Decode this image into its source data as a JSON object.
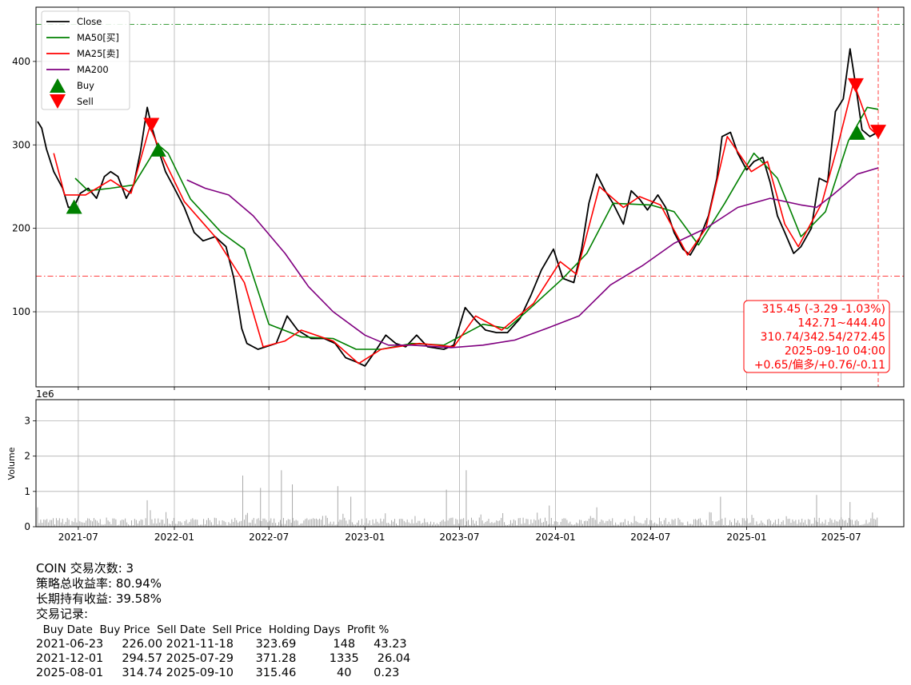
{
  "chart_data": [
    {
      "type": "line",
      "title": "",
      "xlabel": "",
      "ylabel": "",
      "ylim": [
        10,
        465
      ],
      "x_ticks": [
        "2021-07",
        "2022-01",
        "2022-07",
        "2023-01",
        "2023-07",
        "2024-01",
        "2024-07",
        "2025-01",
        "2025-07"
      ],
      "y_ticks": [
        100,
        200,
        300,
        400
      ],
      "grid": true,
      "legend_position": "top-left",
      "legend": [
        "Close",
        "MA50[买]",
        "MA25[卖]",
        "MA200",
        "Buy",
        "Sell"
      ],
      "series": [
        {
          "name": "Close",
          "color": "#000000",
          "points": [
            [
              "2021-04-14",
              328
            ],
            [
              "2021-04-22",
              320
            ],
            [
              "2021-05-01",
              295
            ],
            [
              "2021-05-15",
              268
            ],
            [
              "2021-06-01",
              248
            ],
            [
              "2021-06-12",
              225
            ],
            [
              "2021-06-23",
              226
            ],
            [
              "2021-07-05",
              242
            ],
            [
              "2021-07-20",
              248
            ],
            [
              "2021-08-05",
              236
            ],
            [
              "2021-08-20",
              262
            ],
            [
              "2021-09-01",
              268
            ],
            [
              "2021-09-15",
              262
            ],
            [
              "2021-10-01",
              236
            ],
            [
              "2021-10-15",
              252
            ],
            [
              "2021-10-28",
              292
            ],
            [
              "2021-11-10",
              345
            ],
            [
              "2021-11-18",
              323
            ],
            [
              "2021-12-01",
              295
            ],
            [
              "2021-12-15",
              268
            ],
            [
              "2022-01-01",
              248
            ],
            [
              "2022-01-20",
              225
            ],
            [
              "2022-02-08",
              195
            ],
            [
              "2022-02-25",
              185
            ],
            [
              "2022-03-20",
              190
            ],
            [
              "2022-04-10",
              178
            ],
            [
              "2022-04-25",
              140
            ],
            [
              "2022-05-10",
              80
            ],
            [
              "2022-05-20",
              62
            ],
            [
              "2022-06-10",
              55
            ],
            [
              "2022-06-25",
              58
            ],
            [
              "2022-07-15",
              62
            ],
            [
              "2022-08-05",
              95
            ],
            [
              "2022-08-25",
              78
            ],
            [
              "2022-09-20",
              68
            ],
            [
              "2022-10-15",
              68
            ],
            [
              "2022-11-05",
              62
            ],
            [
              "2022-11-25",
              45
            ],
            [
              "2022-12-15",
              40
            ],
            [
              "2023-01-01",
              35
            ],
            [
              "2023-01-20",
              52
            ],
            [
              "2023-02-10",
              72
            ],
            [
              "2023-03-01",
              62
            ],
            [
              "2023-03-20",
              58
            ],
            [
              "2023-04-10",
              72
            ],
            [
              "2023-05-01",
              58
            ],
            [
              "2023-06-01",
              55
            ],
            [
              "2023-06-20",
              60
            ],
            [
              "2023-07-12",
              105
            ],
            [
              "2023-08-01",
              90
            ],
            [
              "2023-08-20",
              78
            ],
            [
              "2023-09-10",
              75
            ],
            [
              "2023-10-01",
              75
            ],
            [
              "2023-10-25",
              92
            ],
            [
              "2023-11-15",
              120
            ],
            [
              "2023-12-05",
              150
            ],
            [
              "2023-12-28",
              175
            ],
            [
              "2024-01-15",
              140
            ],
            [
              "2024-02-05",
              135
            ],
            [
              "2024-02-20",
              175
            ],
            [
              "2024-03-05",
              230
            ],
            [
              "2024-03-20",
              265
            ],
            [
              "2024-04-05",
              245
            ],
            [
              "2024-04-20",
              230
            ],
            [
              "2024-05-10",
              205
            ],
            [
              "2024-05-25",
              245
            ],
            [
              "2024-06-10",
              235
            ],
            [
              "2024-06-25",
              222
            ],
            [
              "2024-07-15",
              240
            ],
            [
              "2024-07-30",
              225
            ],
            [
              "2024-08-15",
              195
            ],
            [
              "2024-09-01",
              175
            ],
            [
              "2024-09-15",
              168
            ],
            [
              "2024-10-01",
              185
            ],
            [
              "2024-10-20",
              215
            ],
            [
              "2024-11-05",
              260
            ],
            [
              "2024-11-15",
              310
            ],
            [
              "2024-12-01",
              315
            ],
            [
              "2024-12-15",
              290
            ],
            [
              "2025-01-01",
              270
            ],
            [
              "2025-01-15",
              280
            ],
            [
              "2025-02-01",
              285
            ],
            [
              "2025-02-15",
              255
            ],
            [
              "2025-03-01",
              215
            ],
            [
              "2025-03-15",
              195
            ],
            [
              "2025-04-01",
              170
            ],
            [
              "2025-04-15",
              178
            ],
            [
              "2025-05-05",
              200
            ],
            [
              "2025-05-20",
              260
            ],
            [
              "2025-06-05",
              255
            ],
            [
              "2025-06-20",
              340
            ],
            [
              "2025-07-05",
              355
            ],
            [
              "2025-07-18",
              415
            ],
            [
              "2025-07-29",
              371
            ],
            [
              "2025-08-10",
              318
            ],
            [
              "2025-08-25",
              310
            ],
            [
              "2025-09-10",
              315.45
            ]
          ]
        },
        {
          "name": "MA50[买]",
          "color": "#008000",
          "points": [
            [
              "2021-06-25",
              260
            ],
            [
              "2021-07-20",
              245
            ],
            [
              "2021-09-01",
              248
            ],
            [
              "2021-10-15",
              252
            ],
            [
              "2021-12-01",
              300
            ],
            [
              "2021-12-20",
              290
            ],
            [
              "2022-02-01",
              235
            ],
            [
              "2022-04-01",
              195
            ],
            [
              "2022-05-15",
              175
            ],
            [
              "2022-07-01",
              85
            ],
            [
              "2022-09-01",
              70
            ],
            [
              "2022-11-01",
              68
            ],
            [
              "2022-12-15",
              55
            ],
            [
              "2023-02-01",
              55
            ],
            [
              "2023-04-01",
              62
            ],
            [
              "2023-06-01",
              60
            ],
            [
              "2023-08-15",
              85
            ],
            [
              "2023-10-01",
              80
            ],
            [
              "2023-11-15",
              105
            ],
            [
              "2024-01-15",
              140
            ],
            [
              "2024-03-01",
              170
            ],
            [
              "2024-04-20",
              230
            ],
            [
              "2024-07-01",
              228
            ],
            [
              "2024-08-15",
              220
            ],
            [
              "2024-10-01",
              180
            ],
            [
              "2024-11-20",
              230
            ],
            [
              "2025-01-15",
              290
            ],
            [
              "2025-03-01",
              260
            ],
            [
              "2025-04-15",
              190
            ],
            [
              "2025-06-01",
              220
            ],
            [
              "2025-07-15",
              305
            ],
            [
              "2025-08-20",
              345
            ],
            [
              "2025-09-10",
              342.54
            ]
          ]
        },
        {
          "name": "MA25[卖]",
          "color": "#ff0000",
          "points": [
            [
              "2021-05-15",
              290
            ],
            [
              "2021-06-05",
              240
            ],
            [
              "2021-07-15",
              240
            ],
            [
              "2021-09-01",
              258
            ],
            [
              "2021-10-10",
              242
            ],
            [
              "2021-11-15",
              322
            ],
            [
              "2021-12-10",
              285
            ],
            [
              "2022-01-20",
              232
            ],
            [
              "2022-03-20",
              190
            ],
            [
              "2022-05-15",
              135
            ],
            [
              "2022-06-20",
              58
            ],
            [
              "2022-08-01",
              65
            ],
            [
              "2022-09-01",
              78
            ],
            [
              "2022-11-01",
              65
            ],
            [
              "2022-12-20",
              38
            ],
            [
              "2023-02-01",
              55
            ],
            [
              "2023-04-15",
              62
            ],
            [
              "2023-06-20",
              58
            ],
            [
              "2023-08-01",
              95
            ],
            [
              "2023-09-20",
              78
            ],
            [
              "2023-11-20",
              110
            ],
            [
              "2024-01-10",
              160
            ],
            [
              "2024-02-10",
              145
            ],
            [
              "2024-03-25",
              250
            ],
            [
              "2024-05-10",
              225
            ],
            [
              "2024-06-10",
              238
            ],
            [
              "2024-07-20",
              228
            ],
            [
              "2024-09-10",
              168
            ],
            [
              "2024-10-15",
              200
            ],
            [
              "2024-11-25",
              310
            ],
            [
              "2025-01-10",
              268
            ],
            [
              "2025-02-10",
              280
            ],
            [
              "2025-03-15",
              205
            ],
            [
              "2025-04-10",
              178
            ],
            [
              "2025-05-25",
              230
            ],
            [
              "2025-06-25",
              300
            ],
            [
              "2025-07-25",
              375
            ],
            [
              "2025-08-25",
              320
            ],
            [
              "2025-09-10",
              310.74
            ]
          ]
        },
        {
          "name": "MA200",
          "color": "#800080",
          "points": [
            [
              "2022-01-25",
              258
            ],
            [
              "2022-03-01",
              248
            ],
            [
              "2022-04-15",
              240
            ],
            [
              "2022-06-01",
              215
            ],
            [
              "2022-08-01",
              170
            ],
            [
              "2022-09-15",
              130
            ],
            [
              "2022-11-01",
              100
            ],
            [
              "2023-01-01",
              72
            ],
            [
              "2023-02-15",
              60
            ],
            [
              "2023-04-01",
              60
            ],
            [
              "2023-06-15",
              57
            ],
            [
              "2023-08-15",
              60
            ],
            [
              "2023-10-15",
              66
            ],
            [
              "2023-12-15",
              80
            ],
            [
              "2024-02-15",
              95
            ],
            [
              "2024-04-15",
              132
            ],
            [
              "2024-06-15",
              155
            ],
            [
              "2024-08-15",
              182
            ],
            [
              "2024-10-15",
              200
            ],
            [
              "2024-12-15",
              225
            ],
            [
              "2025-02-15",
              236
            ],
            [
              "2025-04-15",
              228
            ],
            [
              "2025-05-15",
              225
            ],
            [
              "2025-06-15",
              240
            ],
            [
              "2025-08-01",
              265
            ],
            [
              "2025-09-10",
              272.45
            ]
          ]
        }
      ],
      "buy_markers": [
        [
          "2021-06-23",
          226.0
        ],
        [
          "2021-12-01",
          294.57
        ],
        [
          "2025-08-01",
          314.74
        ]
      ],
      "sell_markers": [
        [
          "2021-11-18",
          323.69
        ],
        [
          "2025-07-29",
          371.28
        ],
        [
          "2025-09-10",
          315.46
        ]
      ],
      "reference_lines": {
        "upper": {
          "value": 444.4,
          "color": "#008000",
          "style": "dash-dot"
        },
        "lower": {
          "value": 142.71,
          "color": "#ff0000",
          "style": "dash-dot"
        },
        "vertical": {
          "date": "2025-09-10",
          "color": "#ff0000",
          "style": "dashed"
        }
      },
      "info_box": {
        "lines": [
          "315.45 (-3.29 -1.03%)",
          "142.71~444.40",
          "310.74/342.54/272.45",
          "2025-09-10 04:00",
          "+0.65/偏多/+0.76/-0.11"
        ],
        "color": "#ff0000"
      }
    },
    {
      "type": "bar",
      "title": "",
      "ylabel": "Volume",
      "multiplier_label": "1e6",
      "ylim": [
        0,
        3.6
      ],
      "y_ticks": [
        0,
        1,
        2,
        3
      ],
      "x_ticks": [
        "2021-07",
        "2022-01",
        "2022-07",
        "2023-01",
        "2023-07",
        "2024-01",
        "2024-07",
        "2025-01",
        "2025-07"
      ],
      "color": "#a9a9a9",
      "spikes": [
        [
          "2021-04-14",
          0.55
        ],
        [
          "2021-11-10",
          0.75
        ],
        [
          "2022-05-12",
          1.45
        ],
        [
          "2022-06-15",
          1.1
        ],
        [
          "2022-07-25",
          1.6
        ],
        [
          "2022-08-15",
          1.2
        ],
        [
          "2022-11-10",
          1.15
        ],
        [
          "2022-12-05",
          0.85
        ],
        [
          "2023-06-06",
          1.05
        ],
        [
          "2023-07-14",
          1.6
        ],
        [
          "2023-12-20",
          0.6
        ],
        [
          "2024-03-20",
          0.55
        ],
        [
          "2024-11-12",
          0.85
        ],
        [
          "2025-05-15",
          0.9
        ],
        [
          "2025-07-18",
          0.7
        ]
      ]
    }
  ],
  "summary": {
    "line1": "COIN 交易次数: 3",
    "line2": "策略总收益率: 80.94%",
    "line3": "长期持有收益: 39.58%",
    "line4": "交易记录:"
  },
  "trade_table": {
    "header": "  Buy Date  Buy Price  Sell Date  Sell Price  Holding Days  Profit %",
    "rows": [
      "2021-06-23     226.00 2021-11-18      323.69          148     43.23",
      "2021-12-01     294.57 2025-07-29      371.28         1335     26.04",
      "2025-08-01     314.74 2025-09-10      315.46           40      0.23"
    ]
  }
}
